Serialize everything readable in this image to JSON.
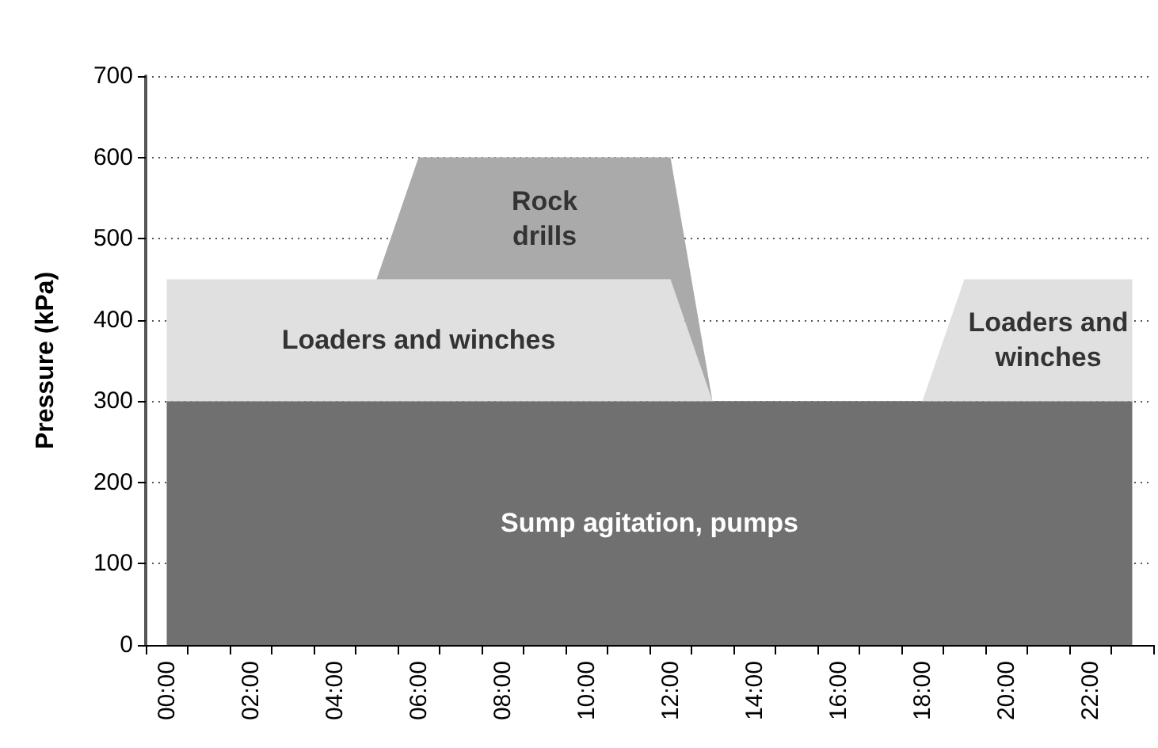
{
  "chart_data": {
    "type": "area",
    "stacked": true,
    "ylabel": "Pressure (kPa)",
    "categories": [
      "00:00",
      null,
      "02:00",
      null,
      "04:00",
      null,
      "06:00",
      null,
      "08:00",
      null,
      "10:00",
      null,
      "12:00",
      null,
      "14:00",
      null,
      "16:00",
      null,
      "18:00",
      null,
      "20:00",
      null,
      "22:00",
      null
    ],
    "series": [
      {
        "name": "Sump agitation, pumps",
        "color": "#707070",
        "values": [
          300,
          300,
          300,
          300,
          300,
          300,
          300,
          300,
          300,
          300,
          300,
          300,
          300,
          300,
          300,
          300,
          300,
          300,
          300,
          300,
          300,
          300,
          300,
          300
        ]
      },
      {
        "name": "Loaders and winches",
        "color": "#e0e0e0",
        "values": [
          150,
          150,
          150,
          150,
          150,
          150,
          150,
          150,
          150,
          150,
          150,
          150,
          150,
          0,
          0,
          0,
          0,
          0,
          0,
          150,
          150,
          150,
          150,
          150
        ]
      },
      {
        "name": "Rock drills",
        "color": "#aaaaaa",
        "values": [
          0,
          0,
          0,
          0,
          0,
          0,
          150,
          150,
          150,
          150,
          150,
          150,
          150,
          0,
          0,
          0,
          0,
          0,
          0,
          0,
          0,
          0,
          0,
          0
        ]
      }
    ],
    "ylim": [
      0,
      700
    ],
    "yticks": [
      0,
      100,
      200,
      300,
      400,
      500,
      600,
      700
    ],
    "grid": "y",
    "marker": "none",
    "legend": false
  }
}
